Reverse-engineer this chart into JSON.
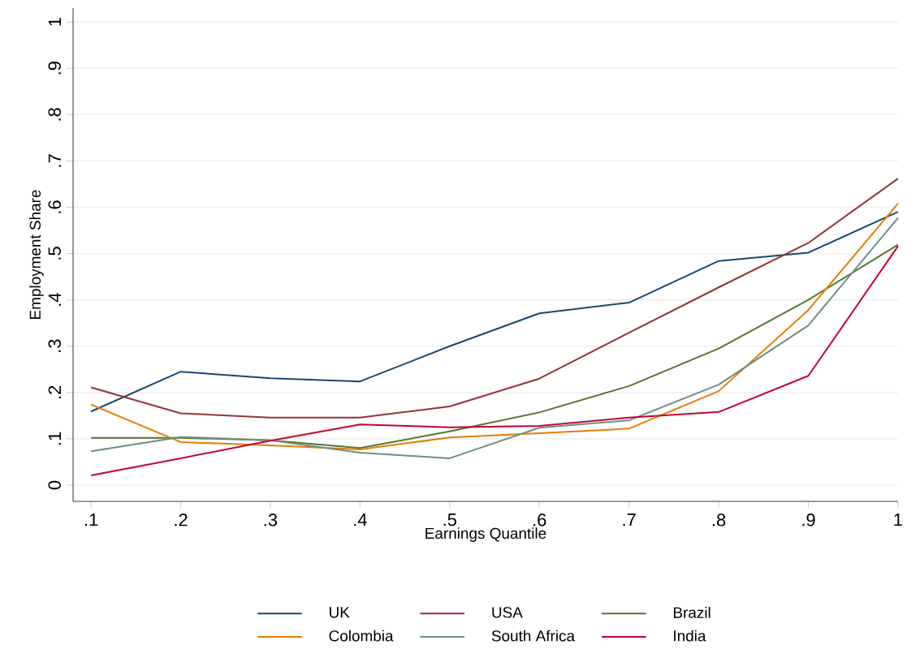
{
  "chart_data": {
    "type": "line",
    "xlabel": "Earnings Quantile",
    "ylabel": "Employment Share",
    "x": [
      0.1,
      0.2,
      0.3,
      0.4,
      0.5,
      0.6,
      0.7,
      0.8,
      0.9,
      1
    ],
    "series": [
      {
        "name": "UK",
        "color": "#1a476f",
        "values": [
          0.159,
          0.245,
          0.231,
          0.224,
          0.3,
          0.371,
          0.394,
          0.484,
          0.502,
          0.59
        ]
      },
      {
        "name": "USA",
        "color": "#90353b",
        "values": [
          0.211,
          0.155,
          0.146,
          0.146,
          0.17,
          0.23,
          0.329,
          0.427,
          0.523,
          0.662
        ]
      },
      {
        "name": "Brazil",
        "color": "#55752f",
        "values": [
          0.102,
          0.102,
          0.097,
          0.08,
          0.116,
          0.157,
          0.214,
          0.295,
          0.4,
          0.519
        ]
      },
      {
        "name": "Colombia",
        "color": "#e37e00",
        "values": [
          0.174,
          0.093,
          0.086,
          0.077,
          0.103,
          0.112,
          0.122,
          0.203,
          0.378,
          0.608
        ]
      },
      {
        "name": "South Africa",
        "color": "#6e8e84",
        "values": [
          0.073,
          0.104,
          0.097,
          0.07,
          0.058,
          0.124,
          0.14,
          0.217,
          0.345,
          0.577
        ]
      },
      {
        "name": "India",
        "color": "#c10534",
        "values": [
          0.021,
          0.058,
          0.096,
          0.131,
          0.125,
          0.128,
          0.146,
          0.158,
          0.236,
          0.516
        ]
      }
    ],
    "xlim": [
      0.08,
      1
    ],
    "ylim": [
      -0.035,
      1.03
    ],
    "xticks": [
      {
        "value": 0.1,
        "label": ".1"
      },
      {
        "value": 0.2,
        "label": ".2"
      },
      {
        "value": 0.3,
        "label": ".3"
      },
      {
        "value": 0.4,
        "label": ".4"
      },
      {
        "value": 0.5,
        "label": ".5"
      },
      {
        "value": 0.6,
        "label": ".6"
      },
      {
        "value": 0.7,
        "label": ".7"
      },
      {
        "value": 0.8,
        "label": ".8"
      },
      {
        "value": 0.9,
        "label": ".9"
      },
      1
    ],
    "yticks": [
      0,
      {
        "value": 0.1,
        "label": ".1"
      },
      {
        "value": 0.2,
        "label": ".2"
      },
      {
        "value": 0.3,
        "label": ".3"
      },
      {
        "value": 0.4,
        "label": ".4"
      },
      {
        "value": 0.5,
        "label": ".5"
      },
      {
        "value": 0.6,
        "label": ".6"
      },
      {
        "value": 0.7,
        "label": ".7"
      },
      {
        "value": 0.8,
        "label": ".8"
      },
      {
        "value": 0.9,
        "label": ".9"
      },
      1
    ],
    "grid": "y",
    "legend": "bottom",
    "marker": "none",
    "line_style": "solid"
  }
}
